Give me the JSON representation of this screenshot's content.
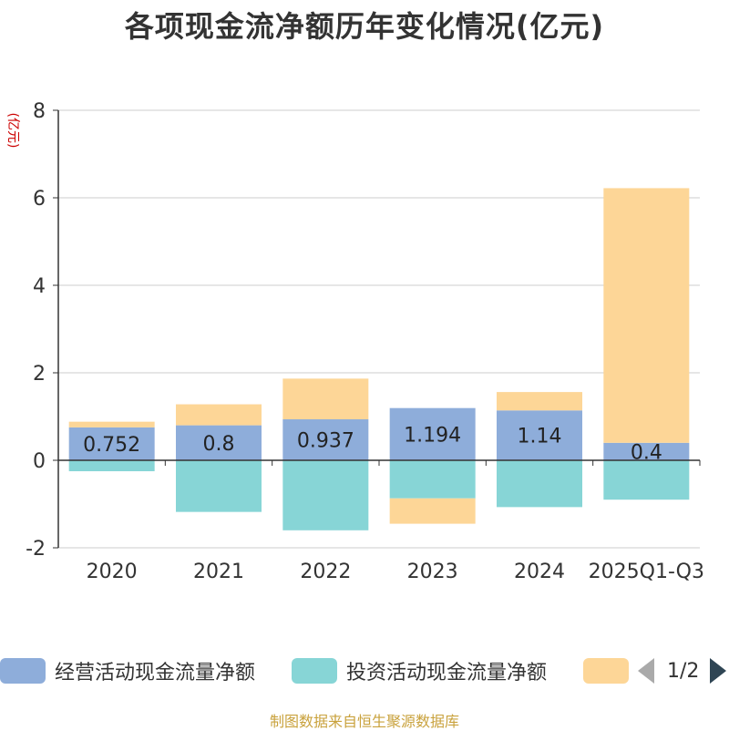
{
  "chart_data": {
    "type": "bar",
    "stacked": true,
    "title": "各项现金流净额历年变化情况(亿元)",
    "ylabel": "(亿元)",
    "xlabel": "",
    "ylim": [
      -2,
      8
    ],
    "yticks": [
      -2,
      0,
      2,
      4,
      6,
      8
    ],
    "grid": true,
    "categories": [
      "2020",
      "2021",
      "2022",
      "2023",
      "2024",
      "2025Q1-Q3"
    ],
    "series": [
      {
        "name": "经营活动现金流量净额",
        "color": "#8eadda",
        "values": [
          0.752,
          0.8,
          0.937,
          1.194,
          1.14,
          0.4
        ],
        "show_labels": true
      },
      {
        "name": "投资活动现金流量净额",
        "color": "#87d5d6",
        "values": [
          -0.25,
          -1.18,
          -1.6,
          -0.87,
          -1.07,
          -0.9
        ],
        "show_labels": false
      },
      {
        "name": "",
        "color": "#fdd697",
        "values": [
          0.13,
          0.48,
          0.93,
          -0.58,
          0.42,
          5.82
        ],
        "show_labels": false
      }
    ],
    "legend_position": "bottom",
    "legend_page": "1/2",
    "source": "制图数据来自恒生聚源数据库"
  }
}
